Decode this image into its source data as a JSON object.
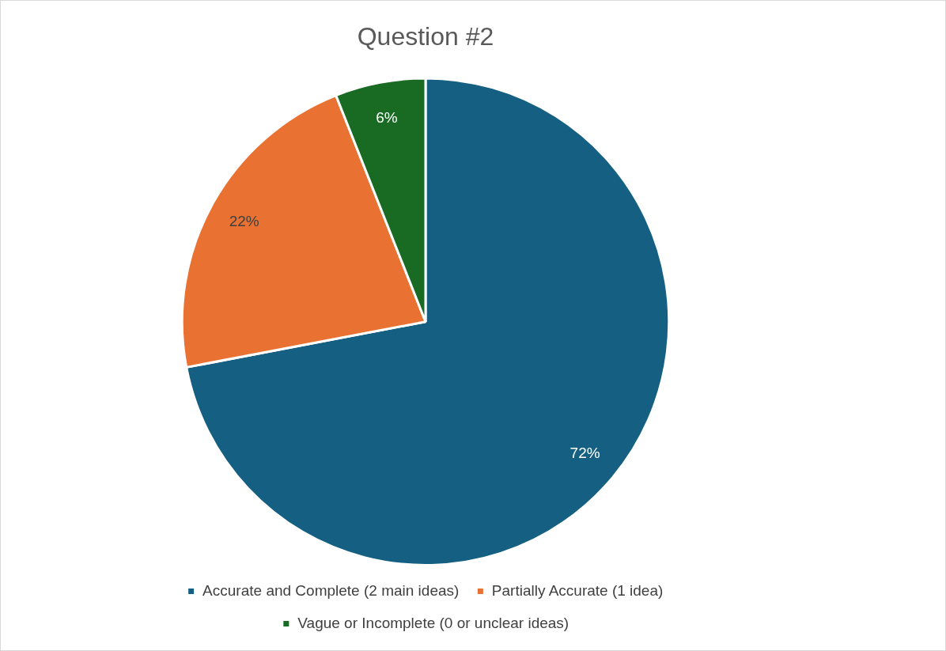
{
  "chart_data": {
    "type": "pie",
    "title": "Question #2",
    "categories": [
      "Accurate and Complete (2 main ideas)",
      "Partially Accurate (1 idea)",
      "Vague or Incomplete (0 or unclear ideas)"
    ],
    "values": [
      72,
      22,
      6
    ],
    "colors": [
      "#156082",
      "#e97132",
      "#196b24"
    ],
    "value_labels": [
      "72%",
      "22%",
      "6%"
    ],
    "legend": "bottom"
  }
}
